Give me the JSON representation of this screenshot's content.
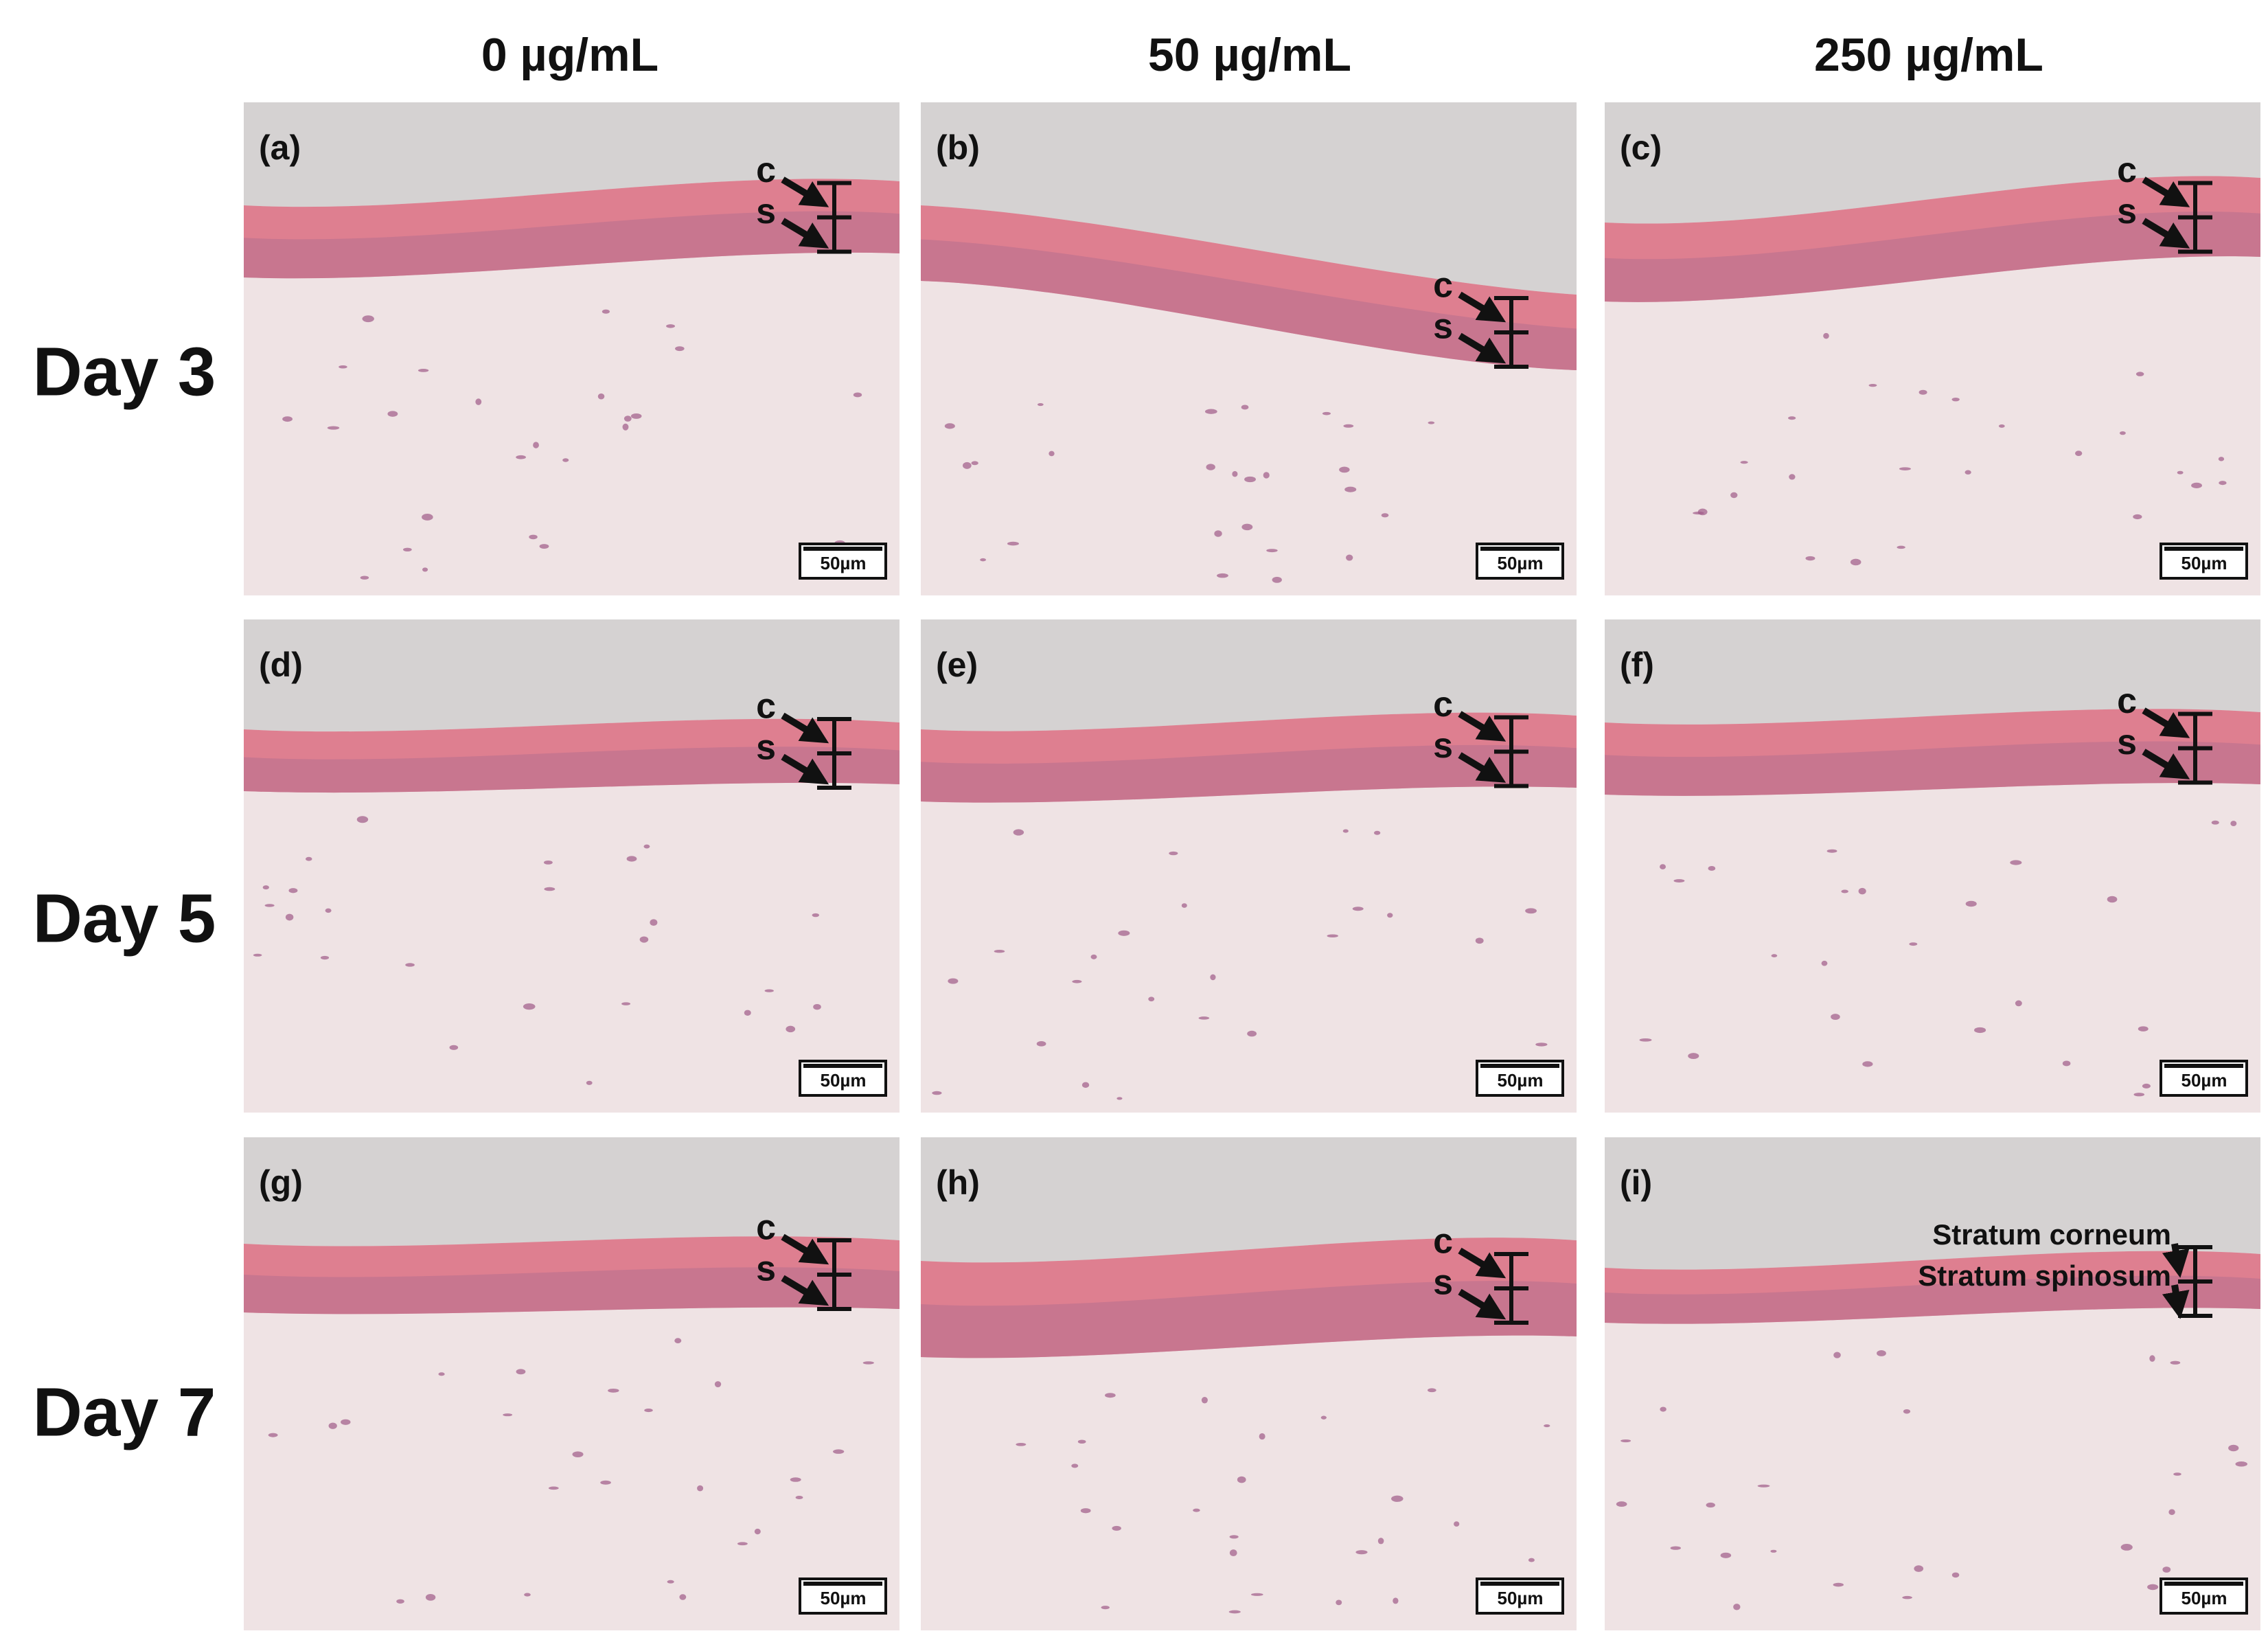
{
  "columns": [
    "0 µg/mL",
    "50 µg/mL",
    "250 µg/mL"
  ],
  "rows": [
    "Day 3",
    "Day 5",
    "Day 7"
  ],
  "panels": [
    {
      "label": "(a)",
      "c": "c",
      "s": "s",
      "scale": "50µm"
    },
    {
      "label": "(b)",
      "c": "c",
      "s": "s",
      "scale": "50µm"
    },
    {
      "label": "(c)",
      "c": "c",
      "s": "s",
      "scale": "50µm"
    },
    {
      "label": "(d)",
      "c": "c",
      "s": "s",
      "scale": "50µm"
    },
    {
      "label": "(e)",
      "c": "c",
      "s": "s",
      "scale": "50µm"
    },
    {
      "label": "(f)",
      "c": "c",
      "s": "s",
      "scale": "50µm"
    },
    {
      "label": "(g)",
      "c": "c",
      "s": "s",
      "scale": "50µm"
    },
    {
      "label": "(h)",
      "c": "c",
      "s": "s",
      "scale": "50µm"
    },
    {
      "label": "(i)",
      "c": "Stratum corneum",
      "s": "Stratum spinosum",
      "scale": "50µm"
    }
  ]
}
